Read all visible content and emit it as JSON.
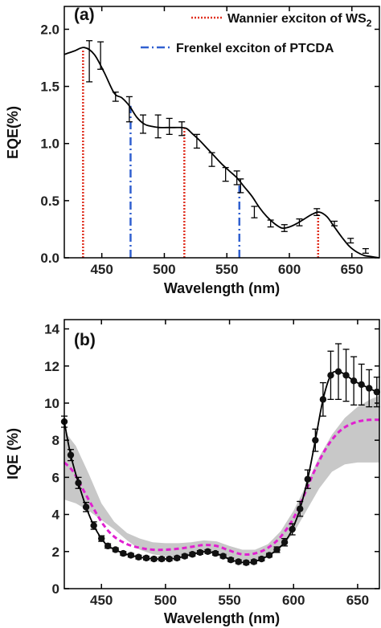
{
  "chart_data": [
    {
      "type": "line",
      "panel_label": "(a)",
      "xlabel": "Wavelength (nm)",
      "ylabel": "EQE(%)",
      "xlim": [
        420,
        672
      ],
      "ylim": [
        0.0,
        2.2
      ],
      "x_ticks": [
        "450",
        "500",
        "550",
        "600",
        "650"
      ],
      "y_ticks": [
        "0.0",
        "0.5",
        "1.0",
        "1.5",
        "2.0"
      ],
      "grid": false,
      "legend_position": "top-right",
      "legend": [
        {
          "label": "Wannier exciton of WS",
          "subscript": "2",
          "style": "dotted",
          "color": "#e03020"
        },
        {
          "label": "Frenkel exciton of PTCDA",
          "style": "dash-dot",
          "color": "#3060d0"
        }
      ],
      "series": [
        {
          "style": "line-with-errorbars",
          "color": "#000000",
          "curve_x": [
            420,
            428,
            436,
            444,
            452,
            460,
            466,
            472,
            478,
            484,
            490,
            496,
            502,
            508,
            514,
            518,
            522,
            528,
            534,
            540,
            546,
            552,
            558,
            564,
            570,
            576,
            582,
            588,
            594,
            600,
            606,
            612,
            618,
            624,
            630,
            636,
            642,
            648,
            654,
            660,
            666,
            672
          ],
          "curve_y": [
            1.78,
            1.81,
            1.84,
            1.78,
            1.62,
            1.44,
            1.4,
            1.33,
            1.23,
            1.17,
            1.15,
            1.14,
            1.14,
            1.14,
            1.14,
            1.13,
            1.09,
            1.03,
            0.96,
            0.89,
            0.82,
            0.76,
            0.7,
            0.62,
            0.54,
            0.44,
            0.36,
            0.3,
            0.26,
            0.27,
            0.3,
            0.34,
            0.38,
            0.4,
            0.36,
            0.27,
            0.18,
            0.1,
            0.05,
            0.02,
            0.01,
            0.0
          ],
          "errorbar_x": [
            440,
            449,
            461,
            472,
            483,
            495,
            504,
            514,
            526,
            538,
            549,
            558,
            561,
            572,
            585,
            596,
            608,
            622,
            636,
            649,
            661
          ],
          "errorbar_y": [
            1.72,
            1.77,
            1.41,
            1.3,
            1.17,
            1.15,
            1.15,
            1.13,
            1.02,
            0.86,
            0.73,
            0.7,
            0.63,
            0.4,
            0.3,
            0.26,
            0.31,
            0.4,
            0.3,
            0.15,
            0.06
          ],
          "errorbar_err": [
            0.18,
            0.12,
            0.04,
            0.11,
            0.08,
            0.1,
            0.07,
            0.06,
            0.06,
            0.06,
            0.06,
            0.06,
            0.06,
            0.05,
            0.03,
            0.03,
            0.03,
            0.03,
            0.02,
            0.02,
            0.02
          ]
        }
      ],
      "vlines": [
        {
          "x": 435,
          "y": 1.82,
          "style": "dotted",
          "color": "#e03020"
        },
        {
          "x": 516,
          "y": 1.13,
          "style": "dotted",
          "color": "#e03020"
        },
        {
          "x": 623,
          "y": 0.4,
          "style": "dotted",
          "color": "#e03020"
        },
        {
          "x": 473,
          "y": 1.33,
          "style": "dash-dot",
          "color": "#3060d0"
        },
        {
          "x": 560,
          "y": 0.65,
          "style": "dash-dot",
          "color": "#3060d0"
        }
      ]
    },
    {
      "type": "line",
      "panel_label": "(b)",
      "xlabel": "Wavelength (nm)",
      "ylabel": "IQE (%)",
      "xlim": [
        421,
        667
      ],
      "ylim": [
        0,
        14.5
      ],
      "x_ticks": [
        "450",
        "500",
        "550",
        "600",
        "650"
      ],
      "y_ticks": [
        "0",
        "2",
        "4",
        "6",
        "8",
        "10",
        "12",
        "14"
      ],
      "grid": false,
      "series": [
        {
          "style": "line-with-markers-and-errorbars",
          "color": "#000000",
          "x": [
            421,
            426,
            432,
            438,
            444,
            450,
            455,
            461,
            467,
            473,
            479,
            485,
            491,
            497,
            503,
            509,
            515,
            521,
            527,
            533,
            539,
            545,
            551,
            557,
            563,
            569,
            575,
            581,
            587,
            593,
            599,
            605,
            611,
            617,
            623,
            629,
            635,
            641,
            647,
            653,
            659,
            665
          ],
          "y": [
            9.0,
            7.2,
            5.7,
            4.4,
            3.4,
            2.7,
            2.3,
            2.1,
            1.9,
            1.8,
            1.7,
            1.65,
            1.6,
            1.6,
            1.6,
            1.65,
            1.75,
            1.85,
            1.95,
            2.0,
            1.9,
            1.75,
            1.55,
            1.45,
            1.4,
            1.45,
            1.6,
            1.8,
            2.1,
            2.5,
            3.2,
            4.3,
            5.9,
            8.0,
            10.2,
            11.5,
            11.7,
            11.5,
            11.2,
            11.0,
            10.8,
            10.6
          ],
          "err": [
            0.3,
            0.3,
            0.3,
            0.25,
            0.2,
            0.15,
            0.12,
            0.1,
            0.1,
            0.1,
            0.1,
            0.1,
            0.1,
            0.1,
            0.1,
            0.1,
            0.1,
            0.1,
            0.1,
            0.1,
            0.1,
            0.1,
            0.1,
            0.1,
            0.1,
            0.1,
            0.1,
            0.1,
            0.15,
            0.2,
            0.3,
            0.4,
            0.5,
            0.6,
            0.9,
            1.3,
            1.5,
            1.4,
            1.3,
            1.1,
            1.0,
            0.8
          ]
        },
        {
          "style": "dashed",
          "color": "#e020d0",
          "x": [
            421,
            428,
            436,
            444,
            452,
            460,
            470,
            480,
            490,
            500,
            510,
            520,
            530,
            540,
            550,
            560,
            570,
            580,
            590,
            600,
            608,
            616,
            624,
            632,
            640,
            650,
            660,
            667
          ],
          "y": [
            6.8,
            6.3,
            5.3,
            4.3,
            3.4,
            2.8,
            2.4,
            2.2,
            2.1,
            2.1,
            2.15,
            2.25,
            2.35,
            2.3,
            2.05,
            1.85,
            1.9,
            2.2,
            2.8,
            3.8,
            5.0,
            6.3,
            7.4,
            8.2,
            8.7,
            9.0,
            9.1,
            9.1
          ]
        },
        {
          "style": "shaded-band",
          "color": "#c8c8c8",
          "x": [
            421,
            430,
            440,
            450,
            460,
            470,
            480,
            490,
            500,
            510,
            520,
            530,
            540,
            550,
            560,
            570,
            580,
            590,
            600,
            610,
            620,
            630,
            640,
            650,
            660,
            667
          ],
          "upper": [
            8.5,
            7.7,
            6.2,
            4.6,
            3.6,
            3.0,
            2.7,
            2.5,
            2.45,
            2.45,
            2.5,
            2.6,
            2.55,
            2.3,
            2.1,
            2.1,
            2.4,
            3.1,
            4.2,
            5.6,
            7.1,
            8.3,
            9.2,
            9.8,
            10.2,
            10.4
          ],
          "lower": [
            4.8,
            4.6,
            4.2,
            3.7,
            3.2,
            2.6,
            2.1,
            1.85,
            1.75,
            1.75,
            1.85,
            1.95,
            1.9,
            1.65,
            1.5,
            1.55,
            1.75,
            2.2,
            3.0,
            4.2,
            5.4,
            6.3,
            6.7,
            6.8,
            6.8,
            6.8
          ]
        }
      ]
    }
  ]
}
